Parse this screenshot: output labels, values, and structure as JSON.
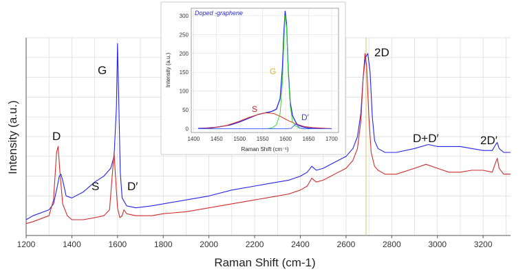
{
  "chart_data": [
    {
      "type": "line",
      "title": "",
      "xlabel": "Raman Shift (cm-1)",
      "ylabel": "Intensity (a.u.)",
      "xlim": [
        1200,
        3320
      ],
      "ylim": [
        0,
        1.0
      ],
      "x_ticks": [
        "1200",
        "1400",
        "1600",
        "1800",
        "2000",
        "2200",
        "2400",
        "2600",
        "2800",
        "3000",
        "3200"
      ],
      "grid": true,
      "colors": {
        "blue": "#2222ee",
        "red": "#d02a2a",
        "grid": "#d9d9d9",
        "marker": "#d4c36a"
      },
      "annotations": [
        "D",
        "G",
        "S",
        "D′",
        "2D",
        "D+D′",
        "2D′"
      ],
      "series": [
        {
          "color": "#2222ee",
          "x": [
            1200,
            1230,
            1300,
            1320,
            1335,
            1345,
            1352,
            1360,
            1375,
            1400,
            1450,
            1500,
            1540,
            1570,
            1585,
            1595,
            1600,
            1605,
            1612,
            1620,
            1640,
            1680,
            1750,
            1800,
            1900,
            2000,
            2100,
            2200,
            2300,
            2350,
            2400,
            2430,
            2450,
            2460,
            2470,
            2500,
            2550,
            2600,
            2630,
            2650,
            2665,
            2675,
            2685,
            2695,
            2705,
            2715,
            2725,
            2740,
            2770,
            2820,
            2900,
            2960,
            3000,
            3050,
            3100,
            3150,
            3200,
            3240,
            3255,
            3262,
            3270,
            3290,
            3320
          ],
          "y": [
            0.08,
            0.1,
            0.13,
            0.16,
            0.24,
            0.3,
            0.31,
            0.28,
            0.2,
            0.19,
            0.22,
            0.27,
            0.3,
            0.34,
            0.4,
            0.65,
            0.97,
            0.7,
            0.32,
            0.19,
            0.15,
            0.14,
            0.15,
            0.16,
            0.18,
            0.2,
            0.23,
            0.25,
            0.27,
            0.28,
            0.3,
            0.32,
            0.35,
            0.34,
            0.33,
            0.34,
            0.37,
            0.4,
            0.44,
            0.5,
            0.62,
            0.8,
            0.9,
            0.92,
            0.83,
            0.6,
            0.48,
            0.44,
            0.42,
            0.42,
            0.44,
            0.46,
            0.45,
            0.45,
            0.45,
            0.44,
            0.43,
            0.43,
            0.46,
            0.47,
            0.44,
            0.42,
            0.42
          ]
        },
        {
          "color": "#d02a2a",
          "x": [
            1200,
            1230,
            1300,
            1320,
            1333,
            1340,
            1348,
            1360,
            1380,
            1400,
            1450,
            1500,
            1540,
            1565,
            1578,
            1585,
            1592,
            1600,
            1610,
            1620,
            1628,
            1640,
            1680,
            1750,
            1800,
            1900,
            2000,
            2100,
            2200,
            2300,
            2350,
            2400,
            2430,
            2450,
            2460,
            2470,
            2500,
            2550,
            2600,
            2630,
            2650,
            2665,
            2675,
            2683,
            2690,
            2700,
            2710,
            2725,
            2740,
            2770,
            2820,
            2900,
            2950,
            3000,
            3050,
            3100,
            3150,
            3200,
            3240,
            3255,
            3262,
            3270,
            3290,
            3320
          ],
          "y": [
            0.06,
            0.07,
            0.1,
            0.18,
            0.42,
            0.45,
            0.32,
            0.16,
            0.1,
            0.08,
            0.08,
            0.09,
            0.1,
            0.13,
            0.32,
            0.42,
            0.28,
            0.14,
            0.09,
            0.1,
            0.13,
            0.11,
            0.1,
            0.1,
            0.11,
            0.12,
            0.14,
            0.16,
            0.18,
            0.2,
            0.21,
            0.23,
            0.25,
            0.29,
            0.28,
            0.27,
            0.28,
            0.31,
            0.34,
            0.38,
            0.44,
            0.58,
            0.8,
            0.92,
            0.86,
            0.6,
            0.42,
            0.35,
            0.33,
            0.31,
            0.31,
            0.34,
            0.36,
            0.34,
            0.32,
            0.32,
            0.33,
            0.33,
            0.32,
            0.37,
            0.39,
            0.34,
            0.31,
            0.31
          ]
        }
      ]
    },
    {
      "type": "line",
      "title": "Doped -graphene",
      "xlabel": "Raman Shift (cm⁻¹)",
      "ylabel": "Intensity (a.u.)",
      "xlim": [
        1395,
        1715
      ],
      "ylim": [
        -10,
        320
      ],
      "x_ticks": [
        "1400",
        "1450",
        "1500",
        "1550",
        "1600",
        "1650",
        "1700"
      ],
      "y_ticks": [
        "0",
        "50",
        "100",
        "150",
        "200",
        "250",
        "300"
      ],
      "grid": true,
      "annotations": [
        {
          "text": "G",
          "color": "#e8b020"
        },
        {
          "text": "S",
          "color": "#c62222"
        },
        {
          "text": "D′",
          "color": "#3344dd"
        }
      ],
      "series": [
        {
          "color": "#2222ee",
          "x": [
            1410,
            1430,
            1450,
            1480,
            1500,
            1520,
            1540,
            1555,
            1570,
            1580,
            1588,
            1593,
            1596,
            1599,
            1602,
            1606,
            1610,
            1615,
            1620,
            1625,
            1630,
            1640,
            1650,
            1660,
            1680,
            1700
          ],
          "y": [
            1,
            2,
            4,
            10,
            18,
            28,
            38,
            42,
            46,
            52,
            80,
            160,
            250,
            312,
            280,
            150,
            70,
            35,
            22,
            12,
            8,
            4,
            2,
            1,
            1,
            0
          ]
        },
        {
          "color": "#e03020",
          "x": [
            1410,
            1440,
            1470,
            1500,
            1520,
            1540,
            1555,
            1565,
            1575,
            1590,
            1605,
            1620,
            1640,
            1660,
            1690,
            1700
          ],
          "y": [
            0,
            2,
            8,
            20,
            30,
            38,
            42,
            42,
            40,
            32,
            22,
            14,
            6,
            3,
            1,
            0
          ]
        },
        {
          "color": "#33dd33",
          "x": [
            1560,
            1570,
            1580,
            1588,
            1593,
            1596,
            1599,
            1602,
            1606,
            1610,
            1615,
            1620,
            1630,
            1640
          ],
          "y": [
            0,
            2,
            10,
            40,
            120,
            220,
            300,
            270,
            140,
            60,
            20,
            8,
            2,
            0
          ]
        },
        {
          "color": "#4466ff",
          "x": [
            1410,
            1600,
            1612,
            1618,
            1622,
            1626,
            1630,
            1640,
            1700
          ],
          "y": [
            0,
            0,
            1,
            8,
            12,
            8,
            2,
            0,
            0
          ]
        }
      ]
    }
  ]
}
